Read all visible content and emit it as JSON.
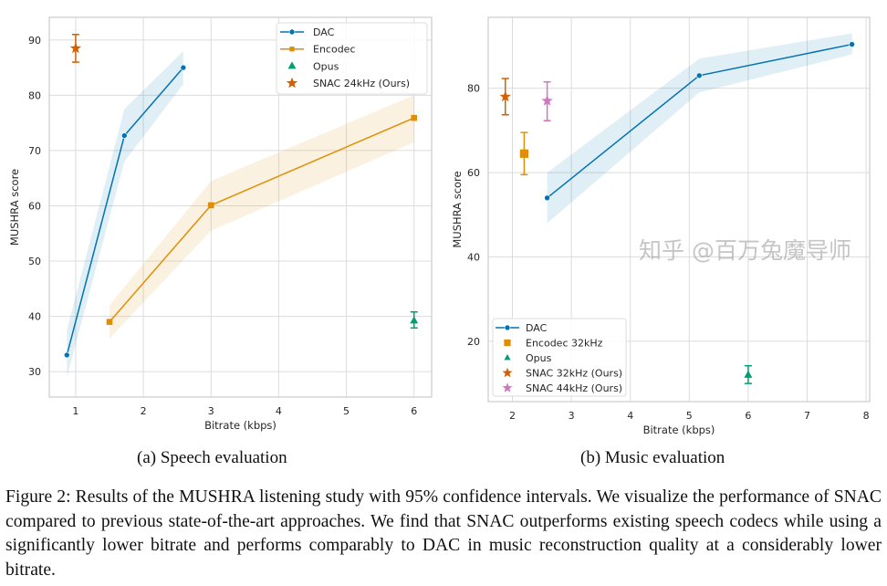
{
  "colors": {
    "DAC": "#0173b2",
    "Encodec": "#de8f05",
    "Opus": "#029e73",
    "SNAC": "#d55e00",
    "SNAC44": "#cc78bc",
    "grid": "#dcdcdc",
    "frame": "#cccccc"
  },
  "chart_data": [
    {
      "type": "line",
      "subcaption": "(a) Speech evaluation",
      "xlabel": "Bitrate (kbps)",
      "ylabel": "MUSHRA score",
      "xlim": [
        0.61,
        6.26
      ],
      "ylim": [
        25.4,
        94.1
      ],
      "xticks": [
        "1",
        "2",
        "3",
        "4",
        "5",
        "6"
      ],
      "yticks": [
        "30",
        "40",
        "50",
        "60",
        "70",
        "80",
        "90"
      ],
      "grid": true,
      "legend_position": "top-right",
      "series": [
        {
          "name": "DAC",
          "kind": "line",
          "marker": "circle",
          "color_key": "DAC",
          "x": [
            0.87,
            1.72,
            2.59
          ],
          "y": [
            33,
            72.7,
            85
          ],
          "ci_low": [
            29,
            68,
            82
          ],
          "ci_high": [
            37.5,
            77.5,
            88
          ]
        },
        {
          "name": "Encodec",
          "kind": "line",
          "marker": "square",
          "color_key": "Encodec",
          "x": [
            1.5,
            3,
            6
          ],
          "y": [
            39,
            60.1,
            75.9
          ],
          "ci_low": [
            36,
            55.5,
            71.5
          ],
          "ci_high": [
            42,
            64.5,
            80
          ]
        },
        {
          "name": "Opus",
          "kind": "point",
          "marker": "triangle",
          "color_key": "Opus",
          "x": [
            6
          ],
          "y": [
            39.2
          ],
          "err_low": [
            37.9
          ],
          "err_high": [
            40.8
          ]
        },
        {
          "name": "SNAC 24kHz (Ours)",
          "kind": "point",
          "marker": "star",
          "color_key": "SNAC",
          "x": [
            1
          ],
          "y": [
            88.5
          ],
          "err_low": [
            86
          ],
          "err_high": [
            91
          ]
        }
      ]
    },
    {
      "type": "line",
      "subcaption": "(b) Music evaluation",
      "xlabel": "Bitrate (kbps)",
      "ylabel": "MUSHRA score",
      "xlim": [
        1.59,
        8.06
      ],
      "ylim": [
        5.7,
        96.8
      ],
      "xticks": [
        "2",
        "3",
        "4",
        "5",
        "6",
        "7",
        "8"
      ],
      "yticks": [
        "20",
        "40",
        "60",
        "80"
      ],
      "grid": true,
      "legend_position": "bottom-left",
      "series": [
        {
          "name": "DAC",
          "kind": "line",
          "marker": "circle",
          "color_key": "DAC",
          "x": [
            2.59,
            5.17,
            7.76
          ],
          "y": [
            54,
            83,
            90.4
          ],
          "ci_low": [
            48,
            79,
            88
          ],
          "ci_high": [
            60,
            87,
            93
          ]
        },
        {
          "name": "Encodec 32kHz",
          "kind": "point",
          "marker": "square",
          "color_key": "Encodec",
          "x": [
            2.2
          ],
          "y": [
            64.5
          ],
          "err_low": [
            59.5
          ],
          "err_high": [
            69.5
          ]
        },
        {
          "name": "Opus",
          "kind": "point",
          "marker": "triangle",
          "color_key": "Opus",
          "x": [
            6
          ],
          "y": [
            12
          ],
          "err_low": [
            10
          ],
          "err_high": [
            14.2
          ]
        },
        {
          "name": "SNAC 32kHz (Ours)",
          "kind": "point",
          "marker": "star",
          "color_key": "SNAC",
          "x": [
            1.88
          ],
          "y": [
            78
          ],
          "err_low": [
            73.7
          ],
          "err_high": [
            82.3
          ]
        },
        {
          "name": "SNAC 44kHz (Ours)",
          "kind": "point",
          "marker": "star",
          "color_key": "SNAC44",
          "x": [
            2.59
          ],
          "y": [
            77
          ],
          "err_low": [
            72.3
          ],
          "err_high": [
            81.5
          ]
        }
      ]
    }
  ],
  "caption": "Figure 2: Results of the MUSHRA listening study with 95% confidence intervals. We visualize the performance of SNAC compared to previous state-of-the-art approaches. We find that SNAC outperforms existing speech codecs while using a significantly lower bitrate and performs comparably to DAC in music reconstruction quality at a considerably lower bitrate.",
  "watermark": "知乎 @百万兔魔导师"
}
